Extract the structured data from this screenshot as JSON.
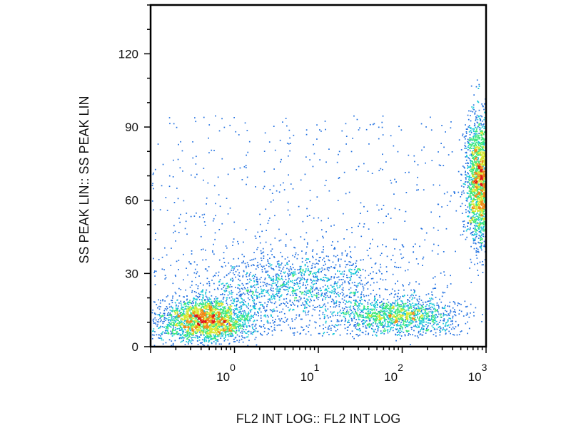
{
  "chart_data": {
    "type": "scatter",
    "subtype": "flow-cytometry-density-dot-plot",
    "xlabel": "FL2 INT LOG:: FL2 INT LOG",
    "ylabel": "SS PEAK LIN:: SS PEAK LIN",
    "x_scale": "log",
    "xlim": [
      0.1,
      1000
    ],
    "ylim": [
      0,
      140
    ],
    "x_ticks": [
      {
        "value": 1,
        "base": "10",
        "exp": "0"
      },
      {
        "value": 10,
        "base": "10",
        "exp": "1"
      },
      {
        "value": 100,
        "base": "10",
        "exp": "2"
      },
      {
        "value": 1000,
        "base": "10",
        "exp": "3"
      }
    ],
    "y_ticks": [
      {
        "value": 0,
        "label": "0"
      },
      {
        "value": 30,
        "label": "30"
      },
      {
        "value": 60,
        "label": "60"
      },
      {
        "value": 90,
        "label": "90"
      },
      {
        "value": 120,
        "label": "120"
      }
    ],
    "grid": false,
    "legend": "none",
    "color_scale": [
      "#1a1aa8",
      "#1f6fe0",
      "#18c8d8",
      "#3ee87a",
      "#d8e830",
      "#f08a18",
      "#e01818"
    ],
    "populations": [
      {
        "x_center": 0.45,
        "y_center": 11,
        "x_spread_decades": 0.28,
        "y_spread": 4.5,
        "density": "high"
      },
      {
        "x_center": 5,
        "y_center": 26,
        "x_spread_decades": 0.55,
        "y_spread": 7,
        "density": "medium"
      },
      {
        "x_center": 90,
        "y_center": 13,
        "x_spread_decades": 0.35,
        "y_spread": 3.5,
        "density": "medium"
      },
      {
        "x_center": 850,
        "y_center": 68,
        "x_spread_decades": 0.09,
        "y_spread": 13,
        "density": "high"
      }
    ]
  }
}
